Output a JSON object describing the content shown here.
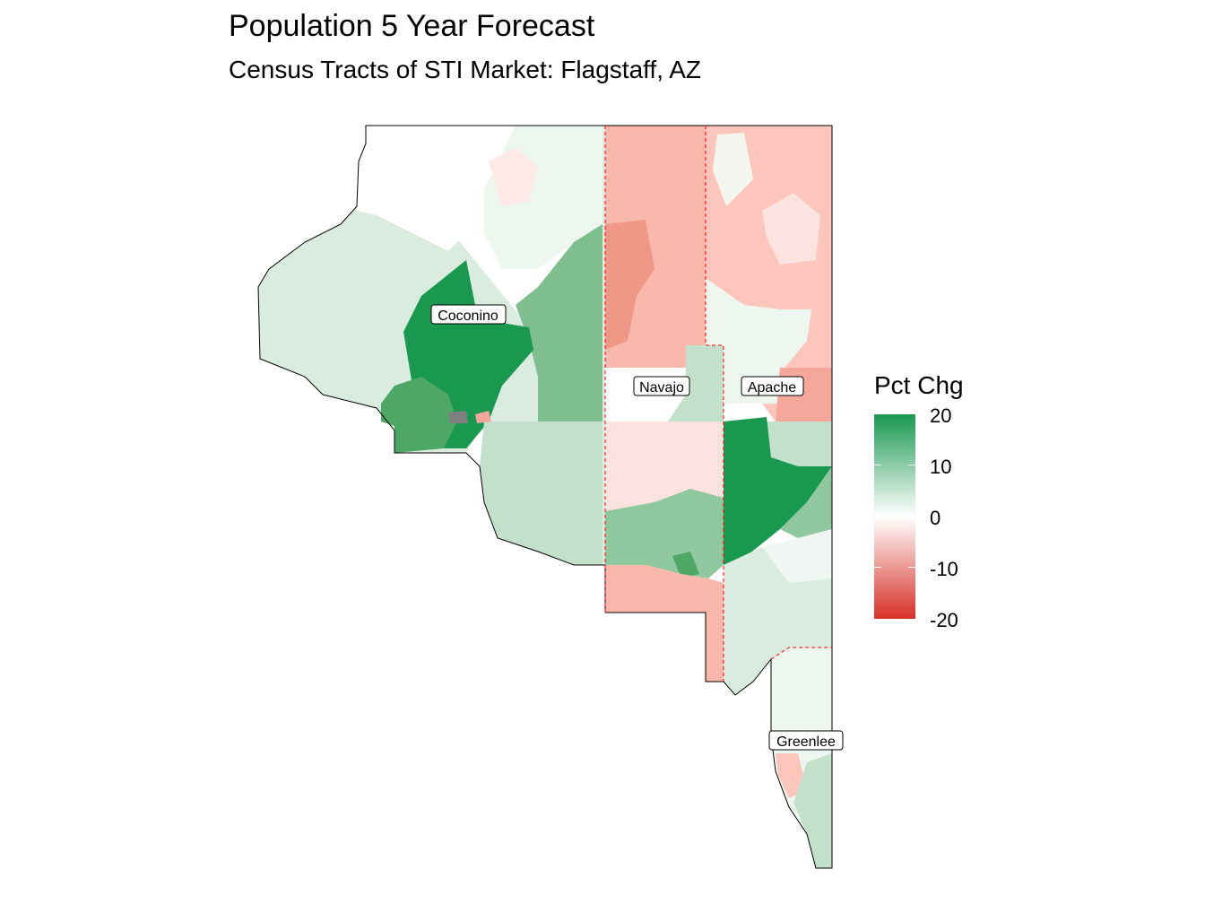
{
  "title": "Population 5 Year Forecast",
  "subtitle": "Census Tracts of STI Market: Flagstaff, AZ",
  "legend": {
    "title": "Pct Chg",
    "ticks": [
      "20",
      "10",
      "0",
      "-10",
      "-20"
    ],
    "low_color": "#d73027",
    "mid_color": "#ffffff",
    "high_color": "#1a9850",
    "range": [
      -20,
      20
    ]
  },
  "counties": [
    {
      "name": "Coconino"
    },
    {
      "name": "Navajo"
    },
    {
      "name": "Apache"
    },
    {
      "name": "Greenlee"
    }
  ],
  "colors": {
    "outline": "#000000",
    "market_boundary": "#ff0000",
    "no_data": "#808080"
  }
}
